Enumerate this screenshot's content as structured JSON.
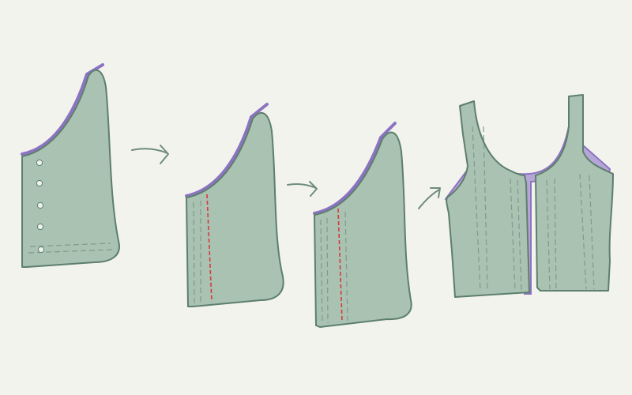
{
  "colors": {
    "background": "#f3f3ee",
    "fabric": "#a9c2b2",
    "fabric_dark": "#9cb6a6",
    "outline": "#5d7f6c",
    "stitch": "#7f9c8a",
    "lining": "#b5a6d6",
    "lining_edge": "#8c73c2",
    "seam_red": "#d63a3a",
    "snap": "#eef2ef",
    "arrow": "#6e8c7c"
  },
  "steps": [
    {
      "id": "step-1",
      "feature": "snap-buttons",
      "count": 5
    },
    {
      "id": "step-2",
      "feature": "red-seam-line"
    },
    {
      "id": "step-3",
      "feature": "red-seam-line-stitched"
    },
    {
      "id": "step-4",
      "feature": "finished-vest"
    }
  ],
  "arrows": [
    "arrow-right-icon",
    "arrow-right-icon",
    "arrow-up-right-icon"
  ]
}
